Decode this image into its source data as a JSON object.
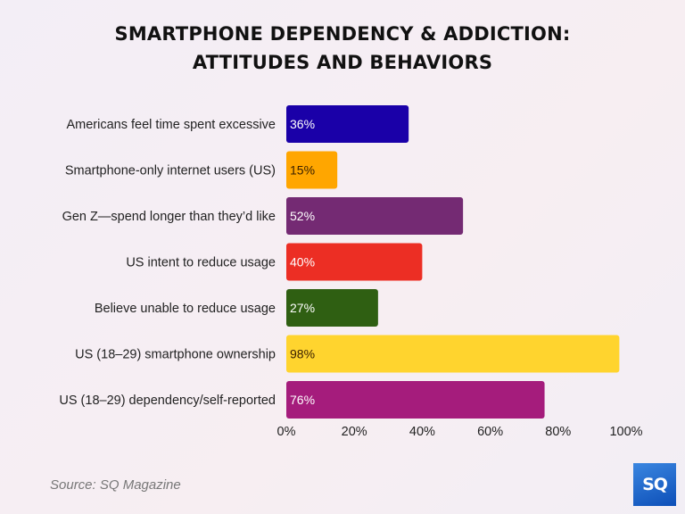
{
  "chart_data": {
    "type": "bar",
    "orientation": "horizontal",
    "title": "SMARTPHONE DEPENDENCY & ADDICTION:\nATTITUDES AND BEHAVIORS",
    "title_lines": [
      "SMARTPHONE DEPENDENCY & ADDICTION:",
      "ATTITUDES AND BEHAVIORS"
    ],
    "categories": [
      "Americans feel time spent excessive",
      "Smartphone-only internet users (US)",
      "Gen Z—spend longer than they’d like",
      "US intent to reduce usage",
      "Believe unable to reduce usage",
      "US (18–29) smartphone ownership",
      "US (18–29) dependency/self-reported"
    ],
    "values": [
      36,
      15,
      52,
      40,
      27,
      98,
      76
    ],
    "data_labels": [
      "36%",
      "15%",
      "52%",
      "40%",
      "27%",
      "98%",
      "76%"
    ],
    "colors": [
      "#1a00a8",
      "#ffa600",
      "#742a73",
      "#ec2e24",
      "#2f5f12",
      "#ffd42e",
      "#a51c7c"
    ],
    "label_colors": [
      "#ffffff",
      "#3a2000",
      "#ffffff",
      "#ffffff",
      "#ffffff",
      "#3a2000",
      "#ffffff"
    ],
    "xlim": [
      0,
      100
    ],
    "xticks": [
      "0%",
      "20%",
      "40%",
      "60%",
      "80%",
      "100%"
    ],
    "xtick_values": [
      0,
      20,
      40,
      60,
      80,
      100
    ],
    "grid": false,
    "xlabel": "",
    "ylabel": ""
  },
  "source": "Source: SQ Magazine",
  "logo": {
    "text": "SQ",
    "color": "#1560c8"
  }
}
